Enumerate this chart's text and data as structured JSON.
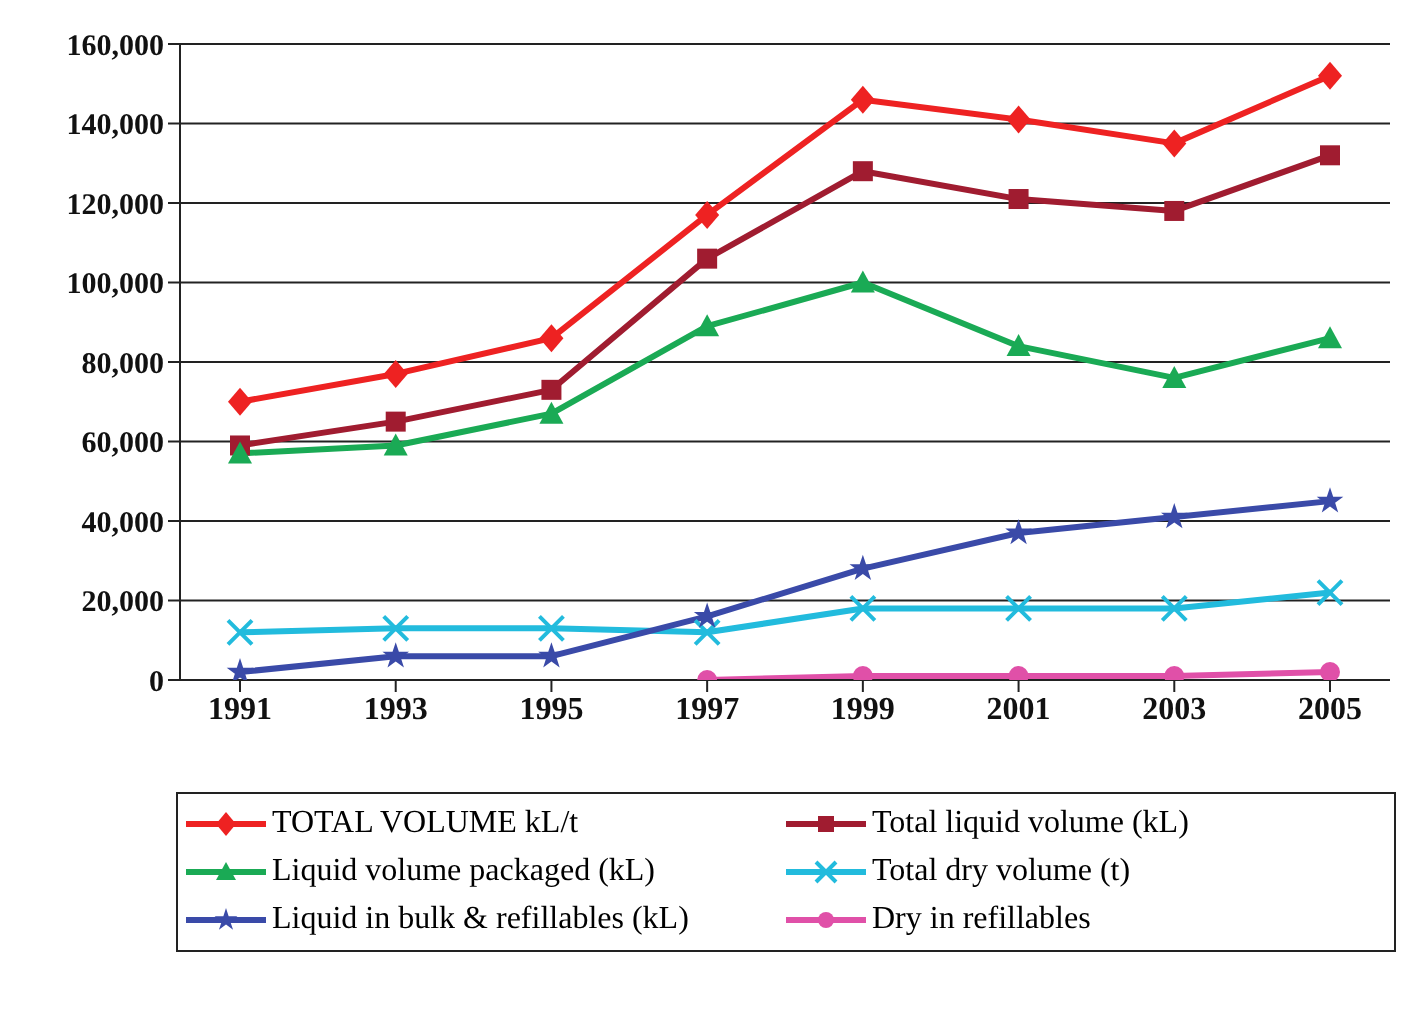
{
  "chart_data": {
    "type": "line",
    "categories": [
      "1991",
      "1993",
      "1995",
      "1997",
      "1999",
      "2001",
      "2003",
      "2005"
    ],
    "series": [
      {
        "name": "TOTAL VOLUME  kL/t",
        "color": "#ee2222",
        "marker": "diamond",
        "values": [
          70000,
          77000,
          86000,
          117000,
          146000,
          141000,
          135000,
          152000
        ]
      },
      {
        "name": "Total liquid volume (kL)",
        "color": "#a01c30",
        "marker": "square",
        "values": [
          59000,
          65000,
          73000,
          106000,
          128000,
          121000,
          118000,
          132000
        ]
      },
      {
        "name": "Liquid volume packaged (kL)",
        "color": "#1aaa55",
        "marker": "triangle",
        "values": [
          57000,
          59000,
          67000,
          89000,
          100000,
          84000,
          76000,
          86000
        ]
      },
      {
        "name": "Total dry volume (t)",
        "color": "#22bbdd",
        "marker": "cross",
        "values": [
          12000,
          13000,
          13000,
          12000,
          18000,
          18000,
          18000,
          22000
        ]
      },
      {
        "name": "Liquid in bulk & refillables (kL)",
        "color": "#3a4aa8",
        "marker": "star",
        "values": [
          2000,
          6000,
          6000,
          16000,
          28000,
          37000,
          41000,
          45000
        ]
      },
      {
        "name": "Dry in refillables",
        "color": "#e050a8",
        "marker": "circle",
        "values": [
          null,
          null,
          null,
          0,
          1000,
          1000,
          1000,
          2000
        ]
      }
    ],
    "ylim": [
      0,
      160000
    ],
    "yticks": [
      0,
      {
        "value": 20000,
        "label": "20,000"
      },
      {
        "value": 40000,
        "label": "40,000"
      },
      {
        "value": 60000,
        "label": "60,000"
      },
      {
        "value": 80000,
        "label": "80,000"
      },
      {
        "value": 100000,
        "label": "100,000"
      },
      {
        "value": 120000,
        "label": "120,000"
      },
      {
        "value": 140000,
        "label": "140,000"
      },
      {
        "value": 160000,
        "label": "160,000"
      }
    ],
    "grid": "y",
    "legend": "bottom",
    "line_style": "solid"
  }
}
